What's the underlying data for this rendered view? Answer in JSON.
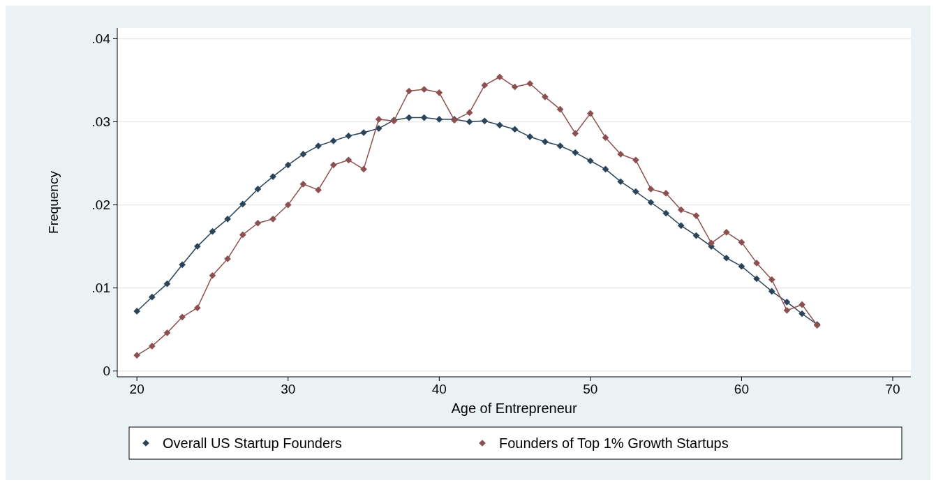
{
  "chart_data": {
    "type": "line",
    "xlabel": "Age of Entrepreneur",
    "ylabel": "Frequency",
    "x": [
      20,
      21,
      22,
      23,
      24,
      25,
      26,
      27,
      28,
      29,
      30,
      31,
      32,
      33,
      34,
      35,
      36,
      37,
      38,
      39,
      40,
      41,
      42,
      43,
      44,
      45,
      46,
      47,
      48,
      49,
      50,
      51,
      52,
      53,
      54,
      55,
      56,
      57,
      58,
      59,
      60,
      61,
      62,
      63,
      64,
      65
    ],
    "series": [
      {
        "name": "Overall US Startup Founders",
        "color": "#2b4459",
        "values": [
          0.0072,
          0.0089,
          0.0105,
          0.0128,
          0.015,
          0.0168,
          0.0183,
          0.0201,
          0.0219,
          0.0234,
          0.0248,
          0.0261,
          0.0271,
          0.0277,
          0.0283,
          0.0287,
          0.0292,
          0.0302,
          0.0305,
          0.0305,
          0.0303,
          0.0303,
          0.03,
          0.0301,
          0.0296,
          0.0291,
          0.0282,
          0.0276,
          0.0271,
          0.0263,
          0.0253,
          0.0243,
          0.0228,
          0.0216,
          0.0203,
          0.019,
          0.0175,
          0.0163,
          0.015,
          0.0136,
          0.0126,
          0.0111,
          0.0096,
          0.0083,
          0.0069,
          0.0056
        ]
      },
      {
        "name": "Founders of Top 1% Growth Startups",
        "color": "#8c5050",
        "values": [
          0.0019,
          0.003,
          0.0046,
          0.0065,
          0.0076,
          0.0115,
          0.0135,
          0.0164,
          0.0178,
          0.0183,
          0.02,
          0.0225,
          0.0218,
          0.0248,
          0.0254,
          0.0243,
          0.0303,
          0.0301,
          0.0337,
          0.0339,
          0.0335,
          0.0302,
          0.0311,
          0.0344,
          0.0354,
          0.0342,
          0.0346,
          0.033,
          0.0315,
          0.0286,
          0.031,
          0.0281,
          0.0261,
          0.0254,
          0.0219,
          0.0214,
          0.0194,
          0.0187,
          0.0154,
          0.0167,
          0.0155,
          0.013,
          0.011,
          0.0073,
          0.008,
          0.0055
        ]
      }
    ],
    "xlim": [
      18.7,
      71.2
    ],
    "xticks": [
      20,
      30,
      40,
      50,
      60,
      70
    ],
    "ylim": [
      -0.0007,
      0.0413
    ],
    "yticks": [
      0,
      {
        "value": 0.01,
        "label": ".01"
      },
      {
        "value": 0.02,
        "label": ".02"
      },
      {
        "value": 0.03,
        "label": ".03"
      },
      {
        "value": 0.04,
        "label": ".04"
      }
    ],
    "grid": "y",
    "legend": "bottom",
    "marker": "diamond",
    "line_style": "solid"
  }
}
